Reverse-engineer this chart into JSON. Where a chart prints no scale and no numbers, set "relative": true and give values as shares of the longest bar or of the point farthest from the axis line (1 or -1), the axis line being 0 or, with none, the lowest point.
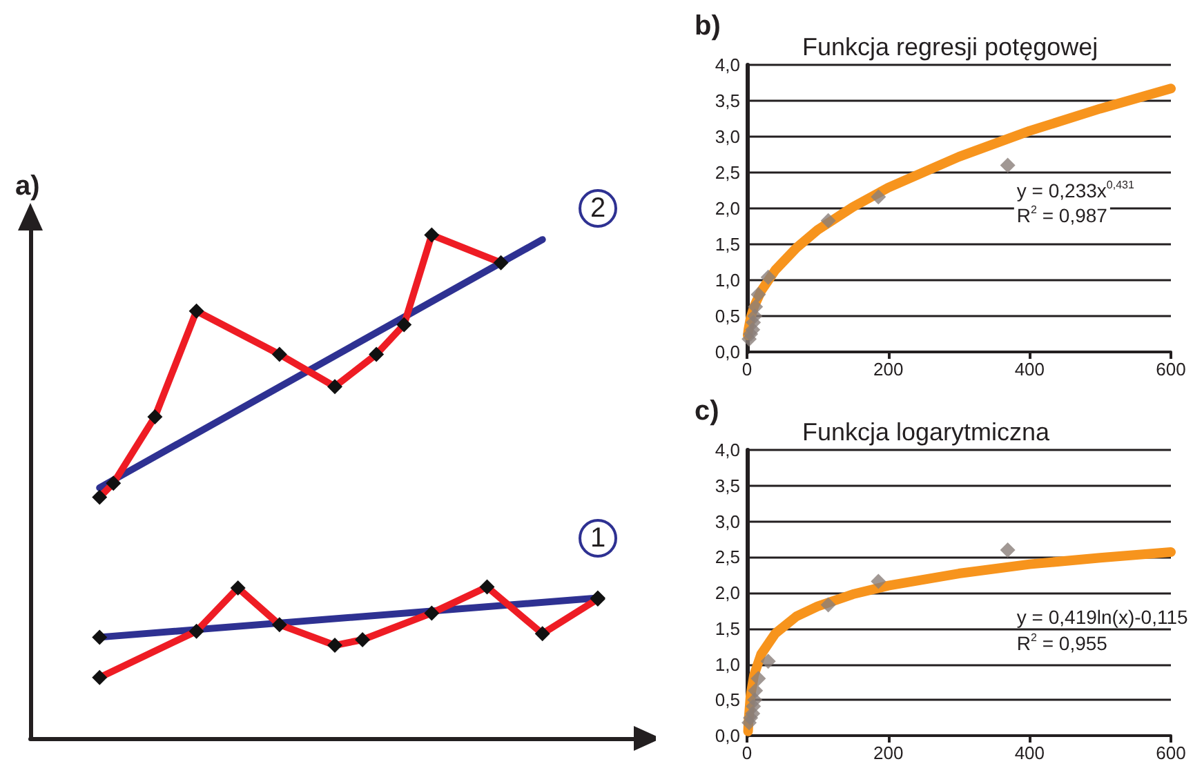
{
  "chart_data": [
    {
      "type": "line",
      "title": "a)",
      "relative": true,
      "marker": "diamond",
      "categories": [
        null,
        null,
        null,
        null,
        null,
        null,
        null,
        null,
        null,
        null,
        null,
        null,
        null,
        null,
        null,
        null,
        null,
        null,
        null,
        null,
        null,
        null,
        null,
        null,
        null,
        null,
        null,
        null,
        null,
        null,
        null,
        null,
        null,
        null,
        null,
        null,
        null,
        null,
        null,
        null,
        null,
        null,
        null,
        null,
        null
      ],
      "annotations": [
        "2",
        "1"
      ],
      "series": [
        {
          "color": "#2e3192",
          "marker": "none",
          "values": [
            null,
            null,
            null,
            null,
            null,
            0.498,
            null,
            null,
            null,
            null,
            null,
            null,
            null,
            null,
            null,
            null,
            null,
            null,
            null,
            null,
            null,
            null,
            null,
            null,
            null,
            null,
            null,
            null,
            null,
            null,
            null,
            null,
            null,
            null,
            null,
            null,
            null,
            0.991,
            null,
            null,
            null,
            null,
            null,
            null,
            null
          ]
        },
        {
          "color": "#ee1c24",
          "values": [
            null,
            null,
            null,
            null,
            null,
            0.479,
            0.507,
            null,
            null,
            0.639,
            null,
            null,
            0.849,
            null,
            null,
            null,
            null,
            null,
            0.763,
            null,
            null,
            null,
            0.699,
            null,
            null,
            0.763,
            null,
            0.822,
            null,
            1.0,
            null,
            null,
            null,
            null,
            0.945,
            null,
            null,
            null,
            null,
            null,
            null,
            null,
            null,
            null,
            null
          ]
        },
        {
          "color": "#2e3192",
          "values": [
            null,
            null,
            null,
            null,
            null,
            0.201,
            null,
            null,
            null,
            null,
            null,
            null,
            null,
            null,
            null,
            null,
            null,
            null,
            null,
            null,
            null,
            null,
            null,
            null,
            null,
            null,
            null,
            null,
            null,
            null,
            null,
            null,
            null,
            null,
            null,
            null,
            null,
            null,
            null,
            null,
            null,
            0.279,
            null,
            null,
            null
          ]
        },
        {
          "color": "#ee1c24",
          "values": [
            null,
            null,
            null,
            null,
            null,
            0.121,
            null,
            null,
            null,
            null,
            null,
            null,
            0.213,
            null,
            null,
            0.299,
            null,
            null,
            0.226,
            null,
            null,
            null,
            0.185,
            null,
            0.196,
            null,
            null,
            null,
            null,
            0.249,
            null,
            null,
            null,
            0.301,
            null,
            null,
            null,
            0.208,
            null,
            null,
            null,
            0.277,
            null,
            null,
            null
          ]
        }
      ]
    },
    {
      "type": "scatter",
      "title": "b)",
      "subtitle": "Funkcja regresji potęgowej",
      "grid": "y",
      "marker": "diamond",
      "xlim": [
        0,
        600
      ],
      "xticks": [
        0,
        200,
        400,
        600
      ],
      "ylim": [
        0,
        4
      ],
      "yticks": [
        {
          "value": 0,
          "label": "0,0"
        },
        {
          "value": 0.5,
          "label": "0,5"
        },
        {
          "value": 1,
          "label": "1,0"
        },
        {
          "value": 1.5,
          "label": "1,5"
        },
        {
          "value": 2,
          "label": "2,0"
        },
        {
          "value": 2.5,
          "label": "2,5"
        },
        {
          "value": 3,
          "label": "3,0"
        },
        {
          "value": 3.5,
          "label": "3,5"
        },
        {
          "value": 4,
          "label": "4,0"
        }
      ],
      "annotations": [
        "y = 0,233x$^{0,431}$",
        "R$^{2}$ = 0,987"
      ],
      "series": [
        {
          "type": "line",
          "color": "#f7941d",
          "marker": "none",
          "x": [
            1,
            2,
            5,
            10,
            20,
            40,
            70,
            100,
            150,
            200,
            300,
            400,
            500,
            600
          ],
          "values": [
            0.23,
            0.31,
            0.47,
            0.63,
            0.85,
            1.14,
            1.45,
            1.7,
            2.02,
            2.29,
            2.72,
            3.08,
            3.39,
            3.67
          ]
        },
        {
          "color": "#8a7e79",
          "x": [
            3,
            5,
            8,
            9,
            11,
            12,
            16,
            30,
            115,
            186,
            369
          ],
          "values": [
            0.18,
            0.25,
            0.31,
            0.41,
            0.5,
            0.63,
            0.8,
            1.04,
            1.83,
            2.16,
            2.6
          ]
        }
      ]
    },
    {
      "type": "scatter",
      "title": "c)",
      "subtitle": "Funkcja logarytmiczna",
      "grid": "y",
      "marker": "diamond",
      "xlim": [
        0,
        600
      ],
      "xticks": [
        0,
        200,
        400,
        600
      ],
      "ylim": [
        0,
        4
      ],
      "yticks": [
        {
          "value": 0,
          "label": "0,0"
        },
        {
          "value": 0.5,
          "label": "0,5"
        },
        {
          "value": 1,
          "label": "1,0"
        },
        {
          "value": 1.5,
          "label": "1,5"
        },
        {
          "value": 2,
          "label": "2,0"
        },
        {
          "value": 2.5,
          "label": "2,5"
        },
        {
          "value": 3,
          "label": "3,0"
        },
        {
          "value": 3.5,
          "label": "3,5"
        },
        {
          "value": 4,
          "label": "4,0"
        }
      ],
      "annotations": [
        "y = 0,419ln(x)-0,115",
        "R$^{2}$ = 0,955"
      ],
      "series": [
        {
          "type": "line",
          "color": "#f7941d",
          "marker": "none",
          "x": [
            1.5,
            2,
            5,
            10,
            20,
            40,
            70,
            100,
            150,
            200,
            300,
            400,
            500,
            600
          ],
          "values": [
            0.06,
            0.18,
            0.56,
            0.85,
            1.14,
            1.43,
            1.67,
            1.81,
            1.98,
            2.1,
            2.27,
            2.4,
            2.49,
            2.57
          ]
        },
        {
          "color": "#8a7e79",
          "x": [
            3,
            5,
            8,
            9,
            11,
            12,
            16,
            30,
            115,
            186,
            369
          ],
          "values": [
            0.18,
            0.25,
            0.31,
            0.41,
            0.5,
            0.63,
            0.8,
            1.04,
            1.83,
            2.16,
            2.6
          ]
        }
      ]
    }
  ]
}
